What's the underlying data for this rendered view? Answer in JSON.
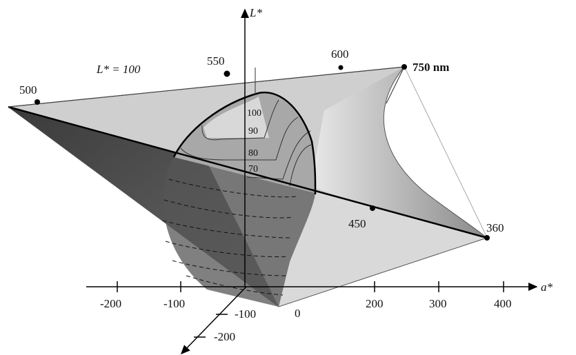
{
  "axes": {
    "l_label": "L*",
    "a_label": "a*",
    "a_ticks": [
      "-200",
      "-100",
      "200",
      "300",
      "400"
    ],
    "b_ticks": [
      "0",
      "-100",
      "-200"
    ]
  },
  "labels": {
    "l100": "L* = 100",
    "w500": "500",
    "w550": "550",
    "w600": "600",
    "w750": "750 nm",
    "w450": "450",
    "w360": "360"
  },
  "contours": [
    "100",
    "90",
    "80",
    "70"
  ],
  "colors": {
    "dark_face": "#4a4a4a",
    "mid_face": "#9a9a9a",
    "light_face": "#d6d6d6"
  }
}
